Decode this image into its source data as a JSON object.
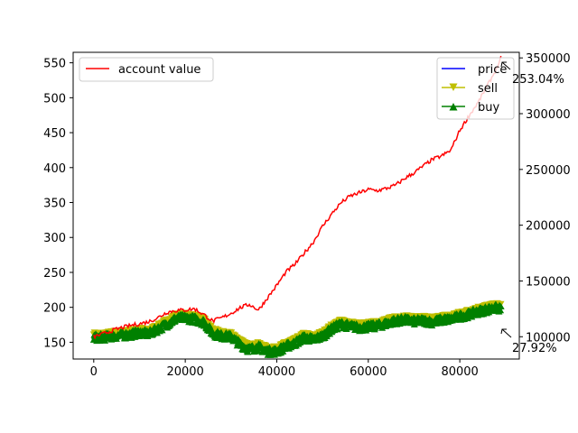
{
  "chart_data": {
    "type": "line",
    "xlim": [
      -4500,
      93000
    ],
    "x_ticks": [
      0,
      20000,
      40000,
      60000,
      80000
    ],
    "left_axis": {
      "ylim": [
        126,
        565
      ],
      "ticks": [
        150,
        200,
        250,
        300,
        350,
        400,
        450,
        500,
        550
      ]
    },
    "right_axis": {
      "ylim": [
        80000,
        355000
      ],
      "ticks": [
        100000,
        150000,
        200000,
        250000,
        300000,
        350000
      ]
    },
    "series": [
      {
        "name": "account value",
        "axis": "right",
        "color": "#ff0000",
        "x": [
          0,
          2000,
          4000,
          6000,
          8000,
          10000,
          12000,
          14000,
          16000,
          18000,
          20000,
          22000,
          24000,
          26000,
          28000,
          30000,
          32000,
          34000,
          36000,
          38000,
          40000,
          42000,
          44000,
          46000,
          48000,
          50000,
          52000,
          54000,
          56000,
          58000,
          60000,
          62000,
          64000,
          66000,
          68000,
          70000,
          72000,
          74000,
          76000,
          78000,
          80000,
          82000,
          84000,
          86000,
          88000,
          89000
        ],
        "y": [
          100000,
          102500,
          105500,
          108000,
          110000,
          111500,
          113500,
          117000,
          122000,
          123500,
          124000,
          125000,
          120000,
          114000,
          117000,
          121000,
          126000,
          129000,
          124000,
          135000,
          146000,
          158000,
          165000,
          175000,
          185000,
          199000,
          210000,
          220000,
          226000,
          229000,
          232000,
          231000,
          233000,
          236000,
          242000,
          247000,
          253000,
          259000,
          262000,
          267000,
          285000,
          298000,
          310000,
          325000,
          340000,
          350000
        ]
      },
      {
        "name": "price",
        "axis": "left",
        "color": "#0000ff",
        "x": [
          0,
          2000,
          4000,
          6000,
          8000,
          10000,
          12000,
          14000,
          16000,
          18000,
          20000,
          22000,
          24000,
          26000,
          28000,
          30000,
          32000,
          34000,
          36000,
          38000,
          40000,
          42000,
          44000,
          46000,
          48000,
          50000,
          52000,
          54000,
          56000,
          58000,
          60000,
          62000,
          64000,
          66000,
          68000,
          70000,
          72000,
          74000,
          76000,
          78000,
          80000,
          82000,
          84000,
          86000,
          88000,
          89000
        ],
        "y": [
          158,
          158,
          160,
          161,
          162,
          165,
          163,
          170,
          177,
          185,
          186,
          184,
          180,
          164,
          160,
          159,
          148,
          141,
          144,
          138,
          138,
          145,
          150,
          158,
          155,
          160,
          170,
          177,
          174,
          172,
          173,
          175,
          178,
          182,
          183,
          181,
          182,
          180,
          183,
          184,
          188,
          191,
          195,
          198,
          200,
          199
        ]
      },
      {
        "name": "sell",
        "axis": "left",
        "color": "#bfbf00",
        "marker": "triangle-down"
      },
      {
        "name": "buy",
        "axis": "left",
        "color": "#008000",
        "marker": "triangle-up"
      }
    ],
    "annotations": [
      {
        "text": "253.04%",
        "x": 89000,
        "axis": "right",
        "y": 350000
      },
      {
        "text": "27.92%",
        "x": 89000,
        "axis": "left",
        "y": 199
      }
    ],
    "legend_left": {
      "placement": "upper-left",
      "entries": [
        "account value"
      ]
    },
    "legend_right": {
      "placement": "upper-right",
      "entries": [
        "price",
        "sell",
        "buy"
      ]
    }
  }
}
